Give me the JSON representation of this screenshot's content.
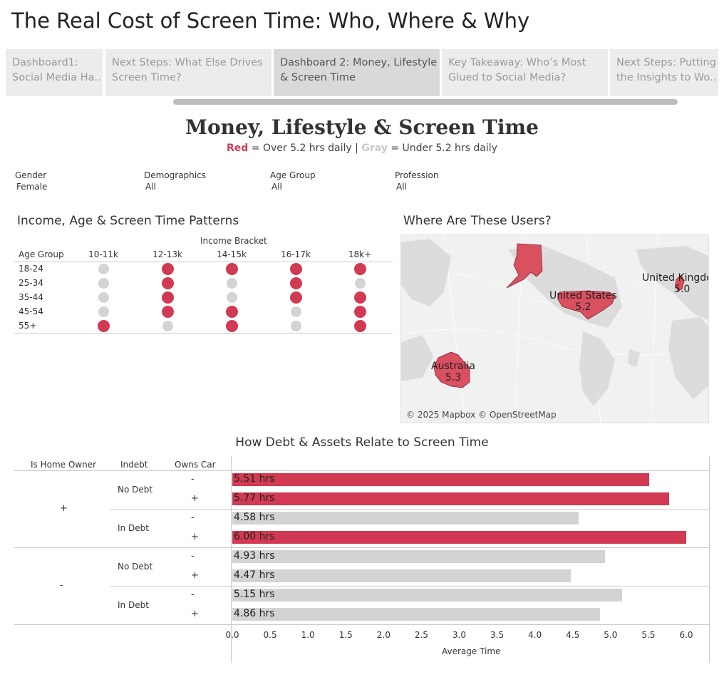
{
  "title": "The Real Cost of Screen Time: Who, Where & Why",
  "tabs": [
    {
      "line1": "Dashboard1:",
      "line2": "Social Media Ha.."
    },
    {
      "line1": "Next Steps: What Else Drives",
      "line2": "Screen Time?"
    },
    {
      "line1": "Dashboard 2: Money, Lifestyle",
      "line2": "& Screen Time"
    },
    {
      "line1": "Key Takeaway: Who’s Most",
      "line2": "Glued to Social Media?"
    },
    {
      "line1": "Next Steps: Putting",
      "line2": "the Insights to Wo.."
    }
  ],
  "active_tab": 2,
  "dashboard": {
    "title": "Money, Lifestyle & Screen Time",
    "legend": {
      "red_word": "Red",
      "red_text": " = Over 5.2 hrs daily | ",
      "gray_word": "Gray",
      "gray_text": " = Under 5.2 hrs daily"
    }
  },
  "colors": {
    "over": "#d13a52",
    "under": "#d3d3d3"
  },
  "filters": [
    {
      "label": "Gender",
      "value": "Female"
    },
    {
      "label": "Demographics",
      "value": "All"
    },
    {
      "label": "Age Group",
      "value": "All"
    },
    {
      "label": "Profession",
      "value": "All"
    }
  ],
  "income_panel": {
    "title": "Income, Age & Screen Time Patterns",
    "column_group": "Income Bracket",
    "row_header": "Age Group",
    "columns": [
      "10-11k",
      "12-13k",
      "14-15k",
      "16-17k",
      "18k+"
    ],
    "rows": [
      {
        "label": "18-24",
        "over": [
          false,
          true,
          true,
          true,
          true
        ]
      },
      {
        "label": "25-34",
        "over": [
          false,
          true,
          false,
          true,
          false
        ]
      },
      {
        "label": "35-44",
        "over": [
          false,
          true,
          false,
          true,
          true
        ]
      },
      {
        "label": "45-54",
        "over": [
          false,
          true,
          true,
          false,
          true
        ]
      },
      {
        "label": "55+",
        "over": [
          true,
          false,
          true,
          false,
          true
        ]
      }
    ]
  },
  "map_panel": {
    "title": "Where Are These Users?",
    "attribution": "© 2025 Mapbox © OpenStreetMap",
    "countries": [
      {
        "name": "United States",
        "value": "5.2"
      },
      {
        "name": "United Kingdom",
        "value": "5.0"
      },
      {
        "name": "Australia",
        "value": "5.3"
      }
    ]
  },
  "debt_panel": {
    "title": "How Debt & Assets Relate to Screen Time",
    "headers": {
      "home": "Is Home Owner",
      "debt": "Indebt",
      "car": "Owns Car"
    },
    "x_label": "Average Time",
    "x_ticks": [
      "0.0",
      "0.5",
      "1.0",
      "1.5",
      "2.0",
      "2.5",
      "3.0",
      "3.5",
      "4.0",
      "4.5",
      "5.0",
      "5.5",
      "6.0"
    ],
    "groups": [
      {
        "home": "+",
        "debt": [
          {
            "label": "No Debt",
            "cars": [
              {
                "car": "-",
                "value": 5.51,
                "label": "5.51 hrs",
                "over": true
              },
              {
                "car": "+",
                "value": 5.77,
                "label": "5.77 hrs",
                "over": true
              }
            ]
          },
          {
            "label": "In Debt",
            "cars": [
              {
                "car": "-",
                "value": 4.58,
                "label": "4.58 hrs",
                "over": false
              },
              {
                "car": "+",
                "value": 6.0,
                "label": "6.00 hrs",
                "over": true
              }
            ]
          }
        ]
      },
      {
        "home": "-",
        "debt": [
          {
            "label": "No Debt",
            "cars": [
              {
                "car": "-",
                "value": 4.93,
                "label": "4.93 hrs",
                "over": false
              },
              {
                "car": "+",
                "value": 4.47,
                "label": "4.47 hrs",
                "over": false
              }
            ]
          },
          {
            "label": "In Debt",
            "cars": [
              {
                "car": "-",
                "value": 5.15,
                "label": "5.15 hrs",
                "over": false
              },
              {
                "car": "+",
                "value": 4.86,
                "label": "4.86 hrs",
                "over": false
              }
            ]
          }
        ]
      }
    ]
  },
  "chart_data": [
    {
      "type": "bar",
      "orientation": "horizontal",
      "title": "How Debt & Assets Relate to Screen Time",
      "xlabel": "Average Time",
      "xlim": [
        0,
        6.0
      ],
      "categories": [
        "+ / No Debt / -",
        "+ / No Debt / +",
        "+ / In Debt / -",
        "+ / In Debt / +",
        "- / No Debt / -",
        "- / No Debt / +",
        "- / In Debt / -",
        "- / In Debt / +"
      ],
      "values": [
        5.51,
        5.77,
        4.58,
        6.0,
        4.93,
        4.47,
        5.15,
        4.86
      ]
    }
  ]
}
